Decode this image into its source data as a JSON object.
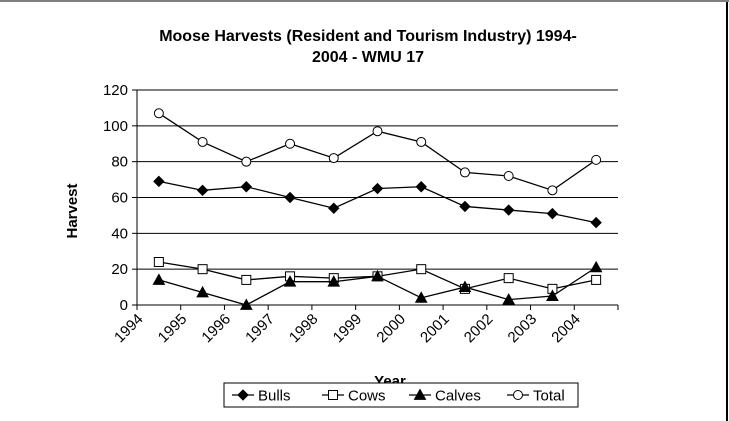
{
  "chart_data": {
    "type": "line",
    "title_line1": "Moose Harvests (Resident and Tourism Industry) 1994-",
    "title_line2": "2004 - WMU 17",
    "xlabel": "Year",
    "ylabel": "Harvest",
    "categories": [
      "1994",
      "1995",
      "1996",
      "1997",
      "1998",
      "1999",
      "2000",
      "2001",
      "2002",
      "2003",
      "2004"
    ],
    "ylim": [
      0,
      120
    ],
    "yticks": [
      "0",
      "20",
      "40",
      "60",
      "80",
      "100",
      "120"
    ],
    "grid": "horizontal",
    "legend_position": "bottom",
    "series": [
      {
        "name": "Bulls",
        "marker": "filled-diamond",
        "color": "#000000",
        "values": [
          69,
          64,
          66,
          60,
          54,
          65,
          66,
          55,
          53,
          51,
          46
        ]
      },
      {
        "name": "Cows",
        "marker": "open-square",
        "color": "#000000",
        "values": [
          24,
          20,
          14,
          16,
          15,
          16,
          20,
          9,
          15,
          9,
          14
        ]
      },
      {
        "name": "Calves",
        "marker": "filled-triangle",
        "color": "#000000",
        "values": [
          14,
          7,
          0,
          13,
          13,
          16,
          4,
          10,
          3,
          5,
          21
        ]
      },
      {
        "name": "Total",
        "marker": "open-circle",
        "color": "#000000",
        "values": [
          107,
          91,
          80,
          90,
          82,
          97,
          91,
          74,
          72,
          64,
          81
        ]
      }
    ]
  }
}
